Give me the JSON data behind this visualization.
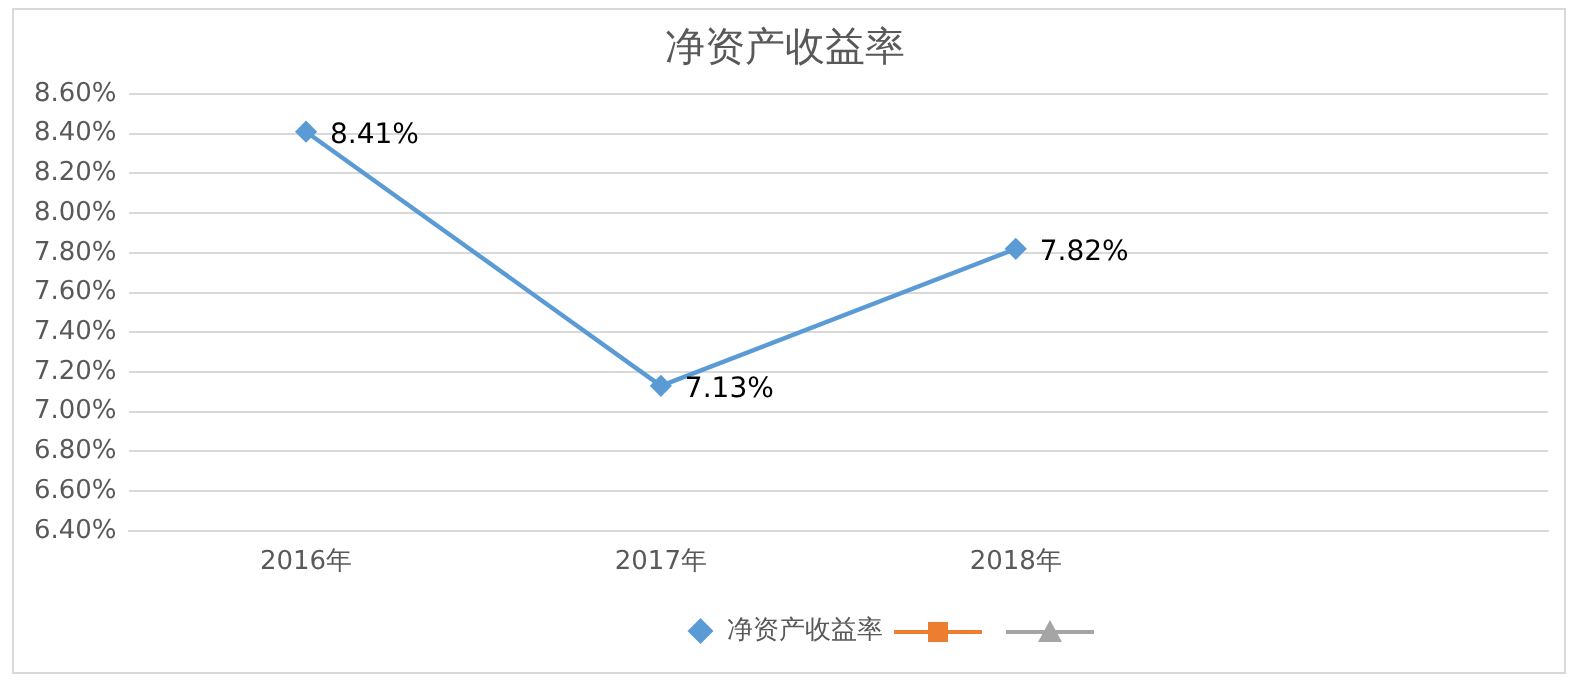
{
  "chart_data": {
    "type": "line",
    "title": "净资产收益率",
    "categories": [
      "2016年",
      "2017年",
      "2018年",
      null
    ],
    "series": [
      {
        "name": "净资产收益率",
        "color": "#5b9bd5",
        "marker": "diamond",
        "values": [
          8.41,
          7.13,
          7.82,
          null
        ],
        "value_labels": [
          "8.41%",
          "7.13%",
          "7.82%",
          null
        ]
      }
    ],
    "ylim": [
      6.4,
      8.6
    ],
    "yticks": [
      {
        "value": 6.4,
        "label": "6.40%"
      },
      {
        "value": 6.6,
        "label": "6.60%"
      },
      {
        "value": 6.8,
        "label": "6.80%"
      },
      {
        "value": 7.0,
        "label": "7.00%"
      },
      {
        "value": 7.2,
        "label": "7.20%"
      },
      {
        "value": 7.4,
        "label": "7.40%"
      },
      {
        "value": 7.6,
        "label": "7.60%"
      },
      {
        "value": 7.8,
        "label": "7.80%"
      },
      {
        "value": 8.0,
        "label": "8.00%"
      },
      {
        "value": 8.2,
        "label": "8.20%"
      },
      {
        "value": 8.4,
        "label": "8.40%"
      },
      {
        "value": 8.6,
        "label": "8.60%"
      }
    ],
    "grid": "y",
    "legend": "bottom",
    "line_style": "solid"
  }
}
